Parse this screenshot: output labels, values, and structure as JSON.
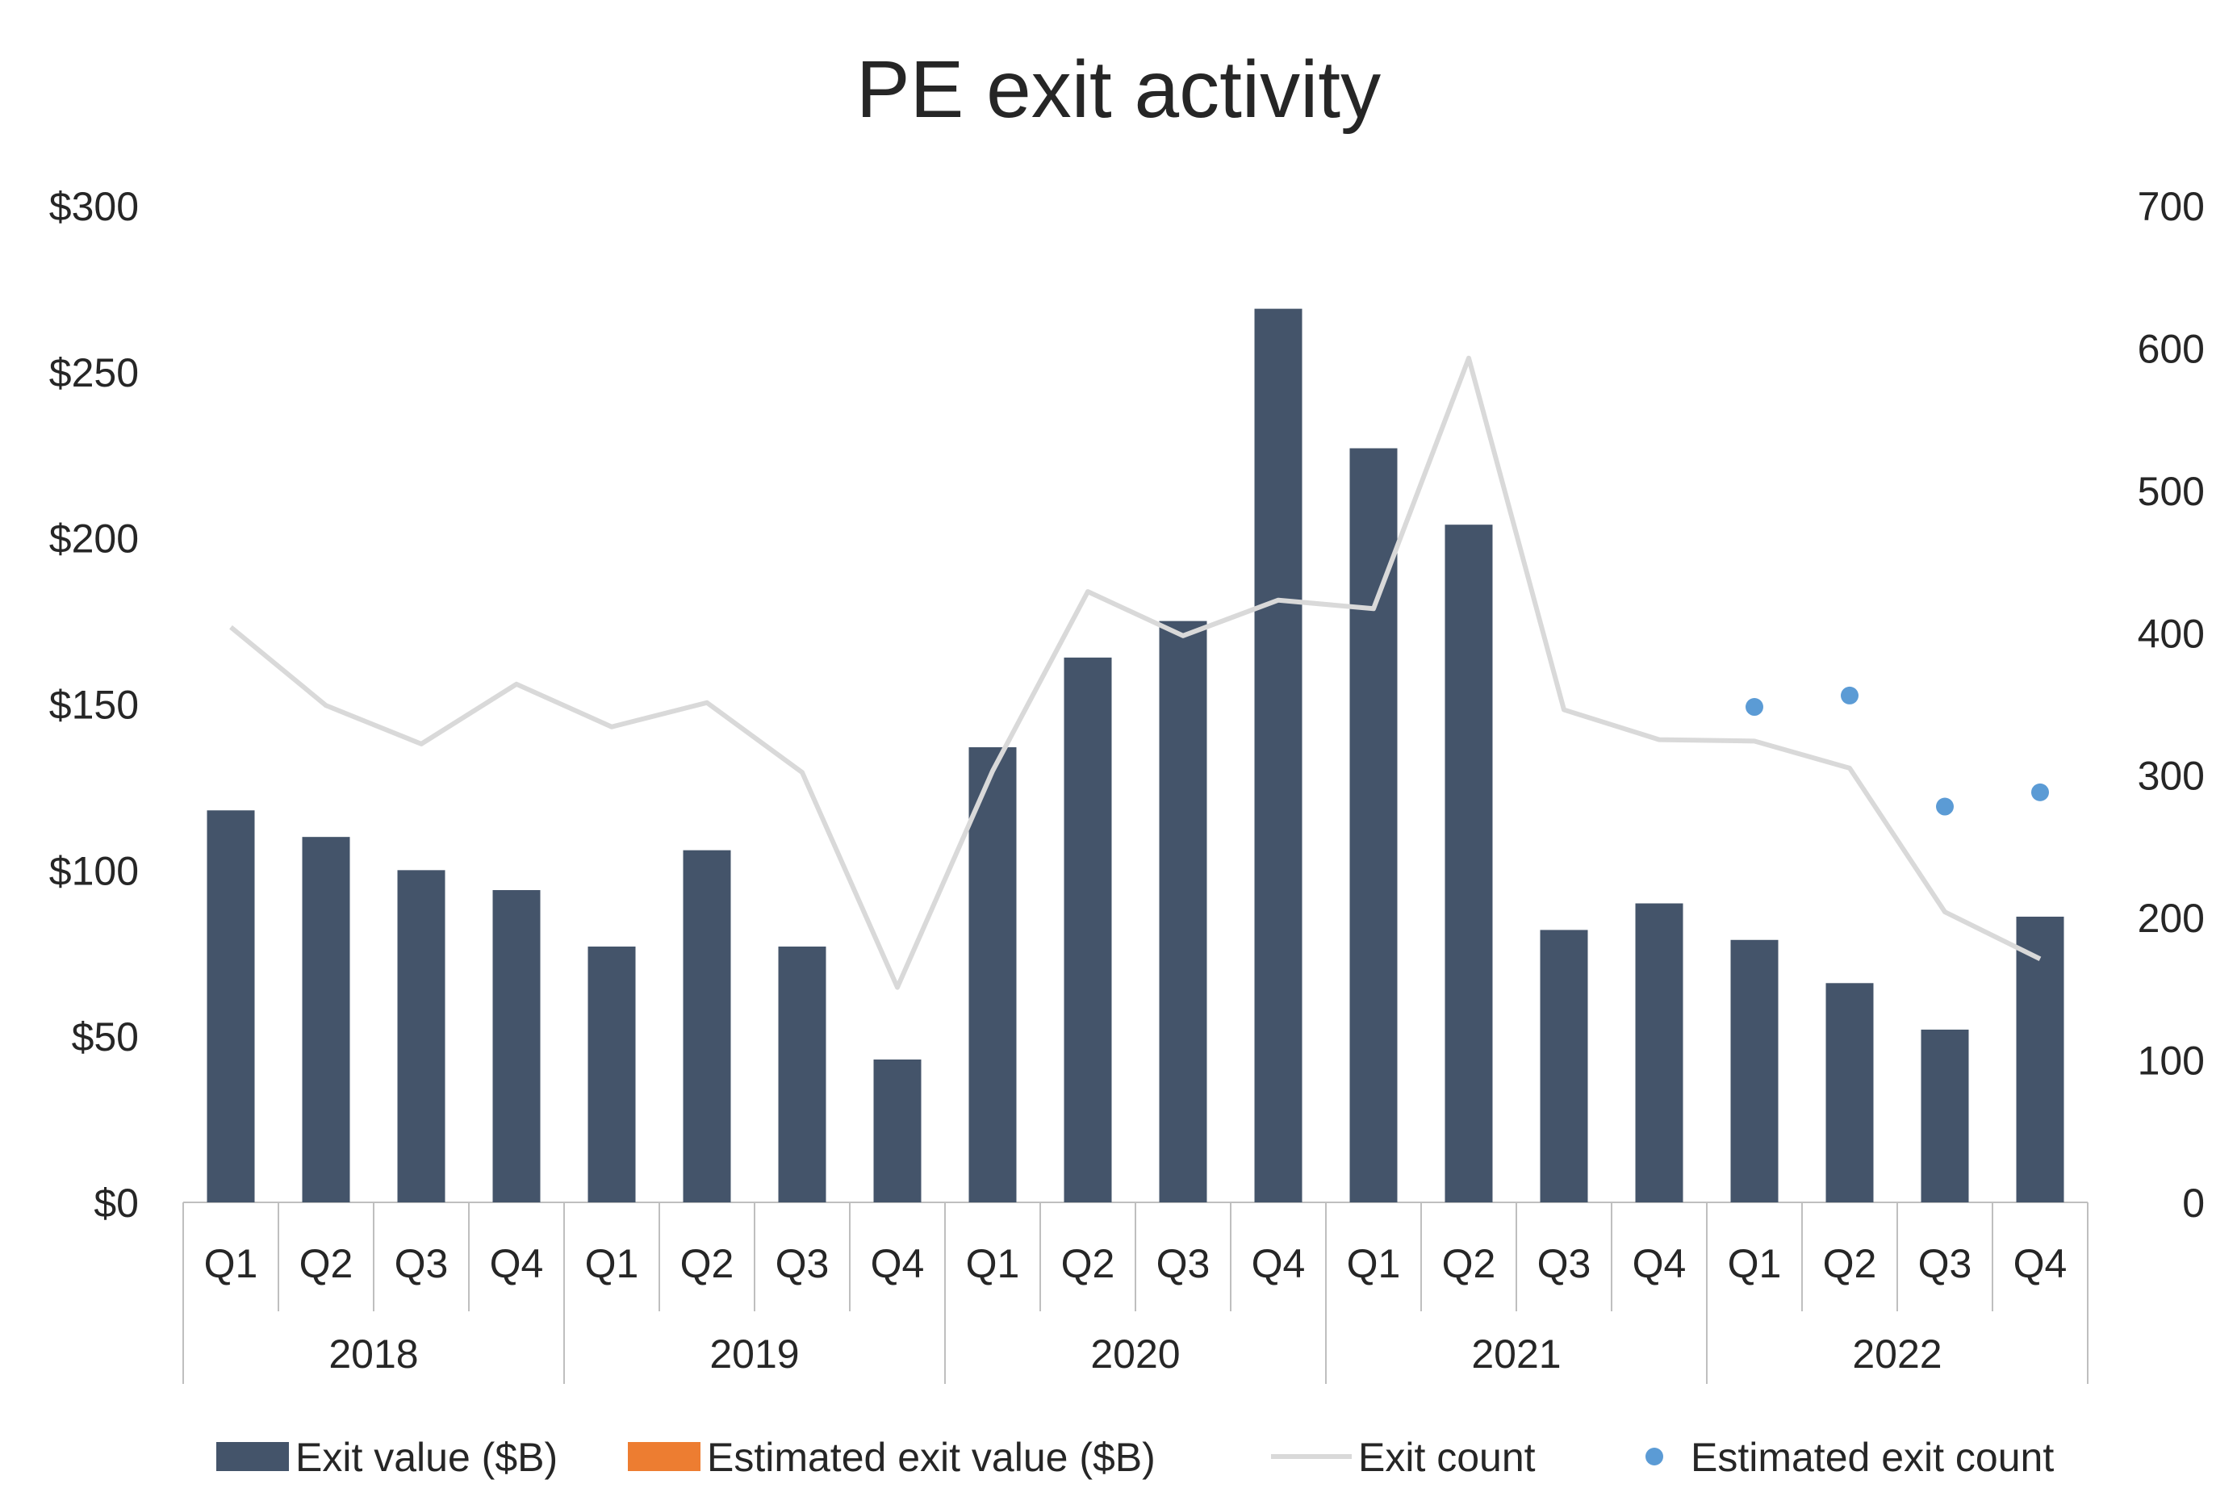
{
  "chart_data": {
    "type": "bar",
    "title": "PE exit activity",
    "categories": [
      "Q1",
      "Q2",
      "Q3",
      "Q4",
      "Q1",
      "Q2",
      "Q3",
      "Q4",
      "Q1",
      "Q2",
      "Q3",
      "Q4",
      "Q1",
      "Q2",
      "Q3",
      "Q4",
      "Q1",
      "Q2",
      "Q3",
      "Q4"
    ],
    "groups": [
      {
        "label": "2018",
        "span": 4
      },
      {
        "label": "2019",
        "span": 4
      },
      {
        "label": "2020",
        "span": 4
      },
      {
        "label": "2021",
        "span": 4
      },
      {
        "label": "2022",
        "span": 4
      }
    ],
    "y_left": {
      "min": 0,
      "max": 300,
      "ticks": [
        0,
        50,
        100,
        150,
        200,
        250,
        300
      ],
      "tick_labels": [
        "$0",
        "$50",
        "$100",
        "$150",
        "$200",
        "$250",
        "$300"
      ]
    },
    "y_right": {
      "min": 0,
      "max": 700,
      "ticks": [
        0,
        100,
        200,
        300,
        400,
        500,
        600,
        700
      ],
      "tick_labels": [
        "0",
        "100",
        "200",
        "300",
        "400",
        "500",
        "600",
        "700"
      ]
    },
    "series": [
      {
        "name": "Exit value ($B)",
        "kind": "bar",
        "axis": "left",
        "color": "#44546A",
        "values": [
          118,
          110,
          100,
          94,
          77,
          106,
          77,
          43,
          137,
          164,
          175,
          269,
          227,
          204,
          82,
          90,
          79,
          66,
          52,
          86
        ]
      },
      {
        "name": "Estimated exit value ($B)",
        "kind": "bar",
        "axis": "left",
        "color": "#ED7D31",
        "values": [
          null,
          null,
          null,
          null,
          null,
          null,
          null,
          null,
          null,
          null,
          null,
          null,
          null,
          null,
          null,
          null,
          null,
          null,
          null,
          null
        ]
      },
      {
        "name": "Exit count",
        "kind": "line",
        "axis": "right",
        "color": "#D9D9D9",
        "values": [
          404,
          349,
          322,
          364,
          334,
          351,
          302,
          151,
          303,
          429,
          398,
          423,
          417,
          593,
          346,
          325,
          324,
          305,
          204,
          171
        ]
      },
      {
        "name": "Estimated exit count",
        "kind": "scatter",
        "axis": "right",
        "color": "#5B9BD5",
        "values": [
          null,
          null,
          null,
          null,
          null,
          null,
          null,
          null,
          null,
          null,
          null,
          null,
          null,
          null,
          null,
          null,
          348,
          356,
          278,
          288
        ]
      }
    ]
  }
}
